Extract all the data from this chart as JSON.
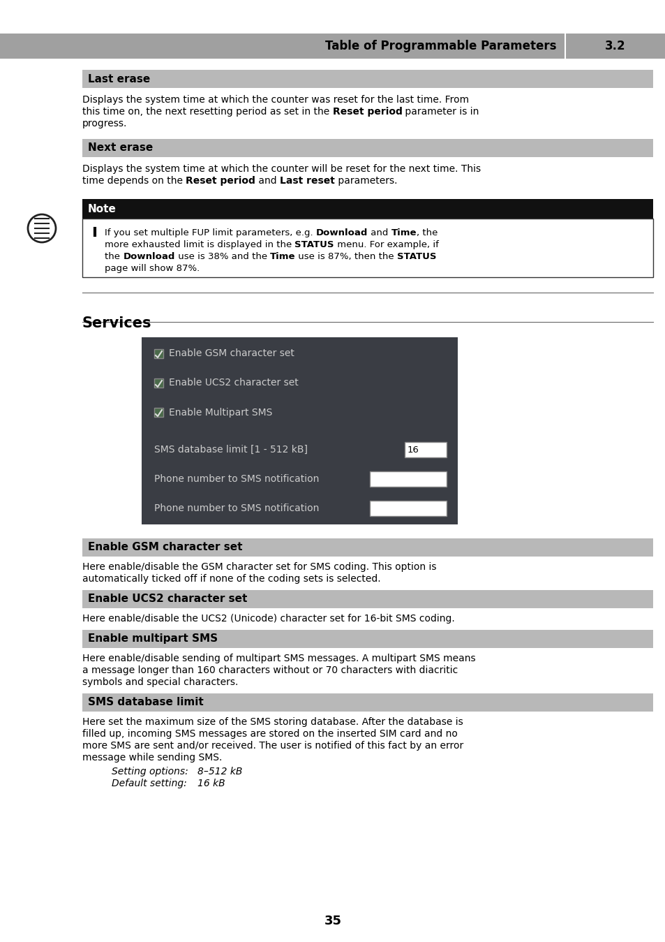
{
  "page_bg": "#ffffff",
  "header_bg": "#a0a0a0",
  "header_text": "Table of Programmable Parameters",
  "header_num": "3.2",
  "section_label_bg": "#b8b8b8",
  "note_header_bg": "#111111",
  "ui_bg": "#3a3d44",
  "ui_text_color": "#cccccc",
  "ui_input_bg": "#ffffff",
  "ui_checkboxes": [
    "Enable GSM character set",
    "Enable UCS2 character set",
    "Enable Multipart SMS"
  ],
  "ui_fields": [
    {
      "label": "SMS database limit [1 - 512 kB]",
      "value": "16",
      "wide": false
    },
    {
      "label": "Phone number to SMS notification",
      "value": "",
      "wide": true
    },
    {
      "label": "Phone number to SMS notification",
      "value": "",
      "wide": true
    }
  ],
  "page_number": "35"
}
